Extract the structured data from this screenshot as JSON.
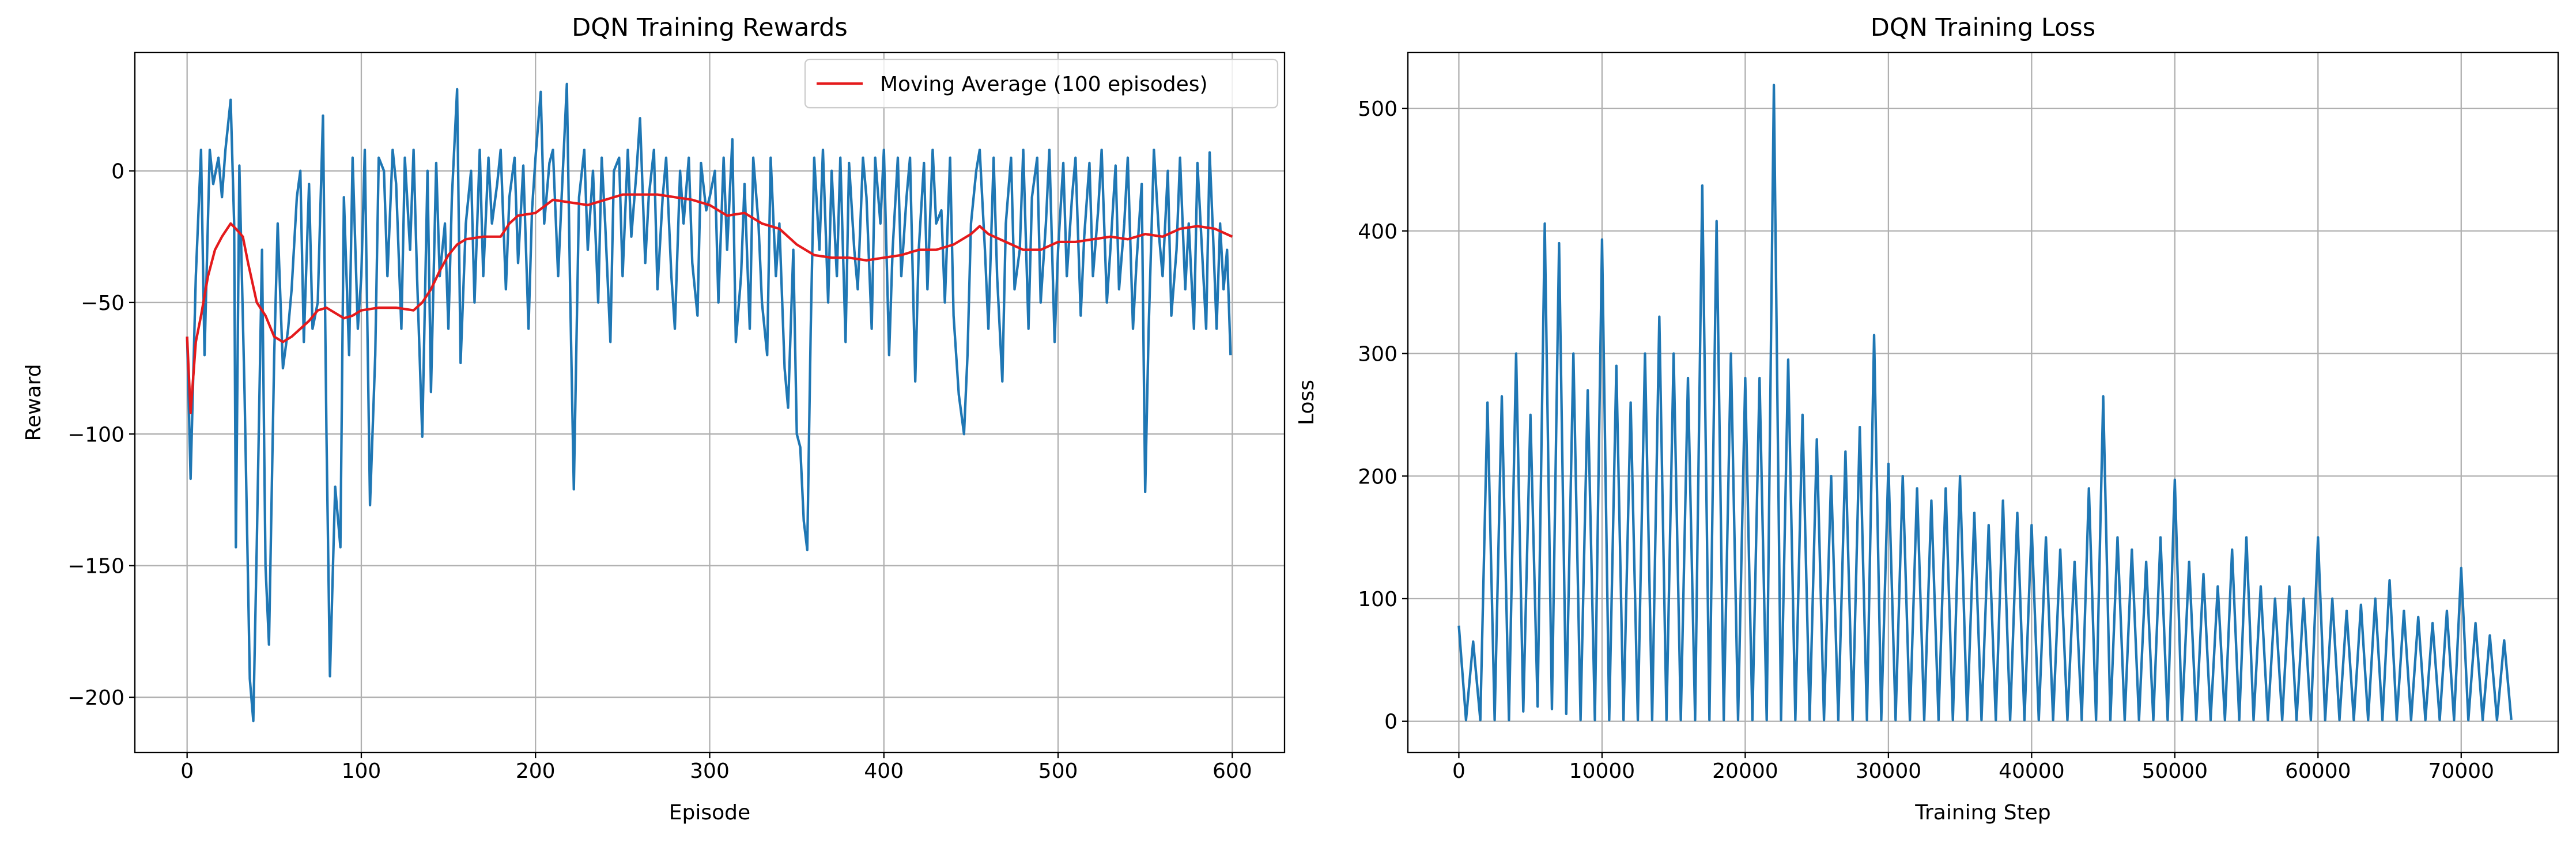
{
  "chart_data": [
    {
      "type": "line",
      "title": "DQN Training Rewards",
      "xlabel": "Episode",
      "ylabel": "Reward",
      "xlim": [
        -30,
        630
      ],
      "ylim": [
        -221,
        45
      ],
      "xticks": [
        0,
        100,
        200,
        300,
        400,
        500,
        600
      ],
      "yticks": [
        {
          "value": -200,
          "label": "−200"
        },
        {
          "value": -150,
          "label": "−150"
        },
        {
          "value": -100,
          "label": "−100"
        },
        {
          "value": -50,
          "label": "−50"
        },
        0
      ],
      "grid": true,
      "legend": "upper right",
      "series": [
        {
          "color": "#1f77b4",
          "x": [
            0,
            2,
            5,
            8,
            10,
            13,
            15,
            18,
            20,
            22,
            25,
            27,
            28,
            30,
            33,
            36,
            38,
            40,
            43,
            45,
            47,
            50,
            52,
            55,
            58,
            60,
            63,
            65,
            67,
            70,
            72,
            75,
            78,
            80,
            82,
            85,
            88,
            90,
            93,
            95,
            98,
            100,
            102,
            105,
            108,
            110,
            113,
            115,
            118,
            120,
            123,
            125,
            128,
            130,
            132,
            135,
            138,
            140,
            143,
            145,
            148,
            150,
            152,
            155,
            157,
            160,
            163,
            165,
            168,
            170,
            173,
            175,
            178,
            180,
            183,
            185,
            188,
            190,
            193,
            196,
            198,
            200,
            203,
            205,
            208,
            210,
            213,
            215,
            218,
            220,
            222,
            225,
            228,
            230,
            233,
            236,
            238,
            240,
            243,
            245,
            248,
            250,
            253,
            255,
            258,
            260,
            263,
            265,
            268,
            270,
            273,
            275,
            278,
            280,
            283,
            285,
            288,
            290,
            293,
            295,
            298,
            300,
            303,
            305,
            308,
            310,
            313,
            315,
            318,
            320,
            323,
            325,
            328,
            330,
            333,
            335,
            338,
            340,
            343,
            345,
            348,
            350,
            352,
            354,
            356,
            358,
            360,
            363,
            365,
            368,
            370,
            373,
            375,
            378,
            380,
            383,
            385,
            388,
            390,
            393,
            395,
            398,
            400,
            403,
            405,
            408,
            410,
            413,
            415,
            418,
            420,
            423,
            425,
            428,
            430,
            433,
            435,
            438,
            440,
            443,
            446,
            448,
            450,
            453,
            455,
            458,
            460,
            463,
            465,
            468,
            470,
            473,
            475,
            478,
            480,
            483,
            485,
            488,
            490,
            493,
            495,
            498,
            500,
            503,
            505,
            508,
            510,
            513,
            515,
            518,
            520,
            523,
            525,
            528,
            530,
            533,
            535,
            538,
            540,
            543,
            545,
            548,
            550,
            552,
            555,
            558,
            560,
            563,
            565,
            568,
            570,
            573,
            575,
            578,
            580,
            583,
            585,
            587,
            589,
            591,
            593,
            595,
            597,
            599
          ],
          "values": [
            -63,
            -117,
            -40,
            8,
            -70,
            8,
            -5,
            5,
            -10,
            8,
            27,
            -20,
            -143,
            2,
            -85,
            -193,
            -209,
            -142,
            -30,
            -150,
            -180,
            -70,
            -20,
            -75,
            -60,
            -45,
            -10,
            0,
            -65,
            -5,
            -60,
            -50,
            21,
            -100,
            -192,
            -120,
            -143,
            -10,
            -70,
            5,
            -60,
            -40,
            8,
            -127,
            -70,
            5,
            0,
            -40,
            8,
            -5,
            -60,
            5,
            -30,
            8,
            -40,
            -101,
            0,
            -84,
            3,
            -40,
            -20,
            -60,
            -10,
            31,
            -73,
            -20,
            0,
            -50,
            8,
            -40,
            5,
            -20,
            -5,
            8,
            -45,
            -10,
            5,
            -35,
            2,
            -60,
            -15,
            5,
            30,
            -20,
            3,
            8,
            -40,
            -10,
            33,
            -50,
            -121,
            -10,
            8,
            -30,
            0,
            -50,
            5,
            -20,
            -65,
            0,
            5,
            -40,
            8,
            -25,
            0,
            20,
            -35,
            -10,
            8,
            -45,
            -10,
            5,
            -40,
            -60,
            0,
            -20,
            5,
            -35,
            -55,
            3,
            -15,
            -10,
            0,
            -50,
            5,
            -30,
            12,
            -65,
            -40,
            -5,
            -60,
            5,
            -20,
            -50,
            -70,
            5,
            -40,
            -20,
            -75,
            -90,
            -30,
            -100,
            -105,
            -133,
            -144,
            -60,
            5,
            -30,
            8,
            -50,
            0,
            -40,
            5,
            -65,
            3,
            -30,
            -45,
            5,
            -10,
            -60,
            5,
            -20,
            8,
            -70,
            -30,
            5,
            -40,
            -10,
            5,
            -80,
            -30,
            3,
            -45,
            8,
            -20,
            -15,
            -50,
            5,
            -55,
            -85,
            -100,
            -70,
            -20,
            0,
            8,
            -30,
            -60,
            5,
            -40,
            -80,
            -20,
            5,
            -45,
            -30,
            8,
            -60,
            -10,
            5,
            -50,
            -20,
            8,
            -65,
            -30,
            3,
            -40,
            -10,
            5,
            -55,
            -25,
            3,
            -40,
            -15,
            8,
            -50,
            -30,
            2,
            -45,
            -20,
            5,
            -60,
            -35,
            -5,
            -122,
            -60,
            8,
            -25,
            -40,
            0,
            -55,
            -30,
            5,
            -45,
            -20,
            -60,
            3,
            -35,
            -60,
            7,
            -25,
            -60,
            -20,
            -45,
            -30,
            -70
          ]
        },
        {
          "name": "Moving Average (100 episodes)",
          "color": "#e41a1c",
          "x": [
            0,
            2,
            5,
            8,
            12,
            16,
            20,
            25,
            28,
            32,
            35,
            40,
            45,
            50,
            55,
            60,
            65,
            70,
            75,
            80,
            85,
            90,
            95,
            100,
            110,
            120,
            130,
            135,
            140,
            145,
            150,
            155,
            160,
            170,
            180,
            185,
            190,
            200,
            210,
            220,
            230,
            240,
            250,
            260,
            270,
            280,
            290,
            300,
            310,
            320,
            330,
            340,
            350,
            360,
            370,
            380,
            390,
            400,
            410,
            420,
            430,
            440,
            450,
            455,
            460,
            470,
            480,
            490,
            500,
            510,
            520,
            530,
            540,
            550,
            560,
            570,
            580,
            590,
            600
          ],
          "values": [
            -63,
            -92,
            -65,
            -55,
            -40,
            -30,
            -25,
            -20,
            -22,
            -25,
            -35,
            -50,
            -55,
            -63,
            -65,
            -63,
            -60,
            -57,
            -53,
            -52,
            -54,
            -56,
            -55,
            -53,
            -52,
            -52,
            -53,
            -50,
            -45,
            -38,
            -32,
            -28,
            -26,
            -25,
            -25,
            -20,
            -17,
            -16,
            -11,
            -12,
            -13,
            -11,
            -9,
            -9,
            -9,
            -10,
            -11,
            -13,
            -17,
            -16,
            -20,
            -22,
            -28,
            -32,
            -33,
            -33,
            -34,
            -33,
            -32,
            -30,
            -30,
            -28,
            -24,
            -21,
            -24,
            -27,
            -30,
            -30,
            -27,
            -27,
            -26,
            -25,
            -26,
            -24,
            -25,
            -22,
            -21,
            -22,
            -25
          ]
        }
      ]
    },
    {
      "type": "line",
      "title": "DQN Training Loss",
      "xlabel": "Training Step",
      "ylabel": "Loss",
      "xlim": [
        -3560,
        76770
      ],
      "ylim": [
        -25.5,
        545.6
      ],
      "xticks": [
        0,
        10000,
        20000,
        30000,
        40000,
        50000,
        60000,
        70000
      ],
      "yticks": [
        0,
        100,
        200,
        300,
        400,
        500
      ],
      "grid": true,
      "series": [
        {
          "color": "#1f77b4",
          "x": [
            0,
            500,
            1000,
            1500,
            2000,
            2500,
            3000,
            3500,
            4000,
            4500,
            5000,
            5500,
            6000,
            6500,
            7000,
            7500,
            8000,
            8500,
            9000,
            9500,
            10000,
            10500,
            11000,
            11500,
            12000,
            12500,
            13000,
            13500,
            14000,
            14500,
            15000,
            15500,
            16000,
            16500,
            17000,
            17500,
            18000,
            18500,
            19000,
            19500,
            20000,
            20500,
            21000,
            21500,
            22000,
            22500,
            23000,
            23500,
            24000,
            24500,
            25000,
            25500,
            26000,
            26500,
            27000,
            27500,
            28000,
            28500,
            29000,
            29500,
            30000,
            30500,
            31000,
            31500,
            32000,
            32500,
            33000,
            33500,
            34000,
            34500,
            35000,
            35500,
            36000,
            36500,
            37000,
            37500,
            38000,
            38500,
            39000,
            39500,
            40000,
            40500,
            41000,
            41500,
            42000,
            42500,
            43000,
            43500,
            44000,
            44500,
            45000,
            45500,
            46000,
            46500,
            47000,
            47500,
            48000,
            48500,
            49000,
            49500,
            50000,
            50500,
            51000,
            51500,
            52000,
            52500,
            53000,
            53500,
            54000,
            54500,
            55000,
            55500,
            56000,
            56500,
            57000,
            57500,
            58000,
            58500,
            59000,
            59500,
            60000,
            60500,
            61000,
            61500,
            62000,
            62500,
            63000,
            63500,
            64000,
            64500,
            65000,
            65500,
            66000,
            66500,
            67000,
            67500,
            68000,
            68500,
            69000,
            69500,
            70000,
            70500,
            71000,
            71500,
            72000,
            72500,
            73000,
            73500
          ],
          "values": [
            78,
            1,
            65,
            1,
            260,
            1,
            265,
            1,
            300,
            8,
            250,
            12,
            406,
            10,
            390,
            6,
            300,
            1,
            270,
            1,
            393,
            1,
            290,
            1,
            260,
            1,
            300,
            1,
            330,
            1,
            300,
            1,
            280,
            1,
            437,
            1,
            408,
            1,
            300,
            1,
            280,
            1,
            280,
            1,
            519,
            1,
            295,
            1,
            250,
            1,
            230,
            1,
            200,
            1,
            220,
            1,
            240,
            1,
            315,
            1,
            210,
            1,
            200,
            1,
            190,
            1,
            180,
            1,
            190,
            1,
            200,
            1,
            170,
            1,
            160,
            1,
            180,
            1,
            170,
            1,
            160,
            1,
            150,
            1,
            140,
            1,
            130,
            1,
            190,
            1,
            265,
            1,
            150,
            1,
            140,
            1,
            130,
            1,
            150,
            1,
            197,
            1,
            130,
            1,
            120,
            1,
            110,
            1,
            140,
            1,
            150,
            1,
            110,
            1,
            100,
            1,
            110,
            1,
            100,
            1,
            150,
            1,
            100,
            1,
            90,
            1,
            95,
            1,
            100,
            1,
            115,
            1,
            90,
            1,
            85,
            1,
            80,
            1,
            90,
            1,
            125,
            1,
            80,
            1,
            70,
            1,
            66,
            1
          ]
        }
      ]
    }
  ]
}
